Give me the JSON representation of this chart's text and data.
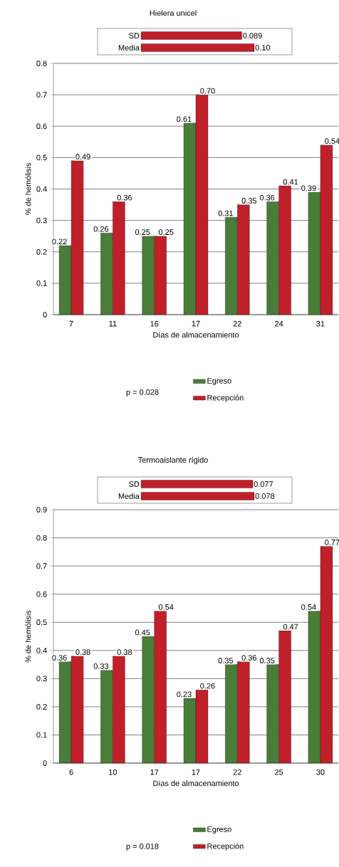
{
  "chart_data": [
    {
      "type": "bar",
      "xlabel": "Días de almacenamiento",
      "ylabel": "% de hemólisis",
      "categories": [
        "7",
        "11",
        "16",
        "17",
        "22",
        "24",
        "31"
      ],
      "series": [
        {
          "name": "Egreso",
          "color": "#4a7c3a",
          "values": [
            0.22,
            0.26,
            0.25,
            0.61,
            0.31,
            0.36,
            0.39
          ],
          "value_labels": [
            "0.22",
            "0.26",
            "0.25",
            "0.61",
            "0.31",
            "0.36",
            "0.39"
          ]
        },
        {
          "name": "Recepción",
          "color": "#c0202a",
          "values": [
            0.49,
            0.36,
            0.25,
            0.7,
            0.35,
            0.41,
            0.54
          ],
          "value_labels": [
            "0.49",
            "0.36",
            "0.25",
            "0.70",
            "0.35",
            "0.41",
            "0.54"
          ]
        }
      ],
      "ylim": [
        0,
        0.8
      ],
      "yticks": [
        0,
        0.1,
        0.2,
        0.3,
        0.4,
        0.5,
        0.6,
        0.7,
        0.8
      ],
      "grid": "y",
      "legend": "bottom",
      "annotations": [
        "p = 0.028"
      ]
    },
    {
      "type": "bar",
      "title": "Hielera unicel",
      "orientation": "horizontal",
      "categories": [
        "SD",
        "Media"
      ],
      "values": [
        0.089,
        0.1
      ],
      "color": "#c0202a",
      "value_labels": [
        "0.089",
        "0.10"
      ]
    },
    {
      "type": "bar",
      "xlabel": "Días de almacenamiento",
      "ylabel": "% de hemólisis",
      "categories": [
        "6",
        "10",
        "17",
        "17",
        "22",
        "25",
        "30"
      ],
      "series": [
        {
          "name": "Egreso",
          "color": "#4a7c3a",
          "values": [
            0.36,
            0.33,
            0.45,
            0.23,
            0.35,
            0.35,
            0.54
          ],
          "value_labels": [
            "0.36",
            "0.33",
            "0.45",
            "0.23",
            "0.35",
            "0.35",
            "0.54"
          ]
        },
        {
          "name": "Recepción",
          "color": "#c0202a",
          "values": [
            0.38,
            0.38,
            0.54,
            0.26,
            0.36,
            0.47,
            0.77
          ],
          "value_labels": [
            "0.38",
            "0.38",
            "0.54",
            "0.26",
            "0.36",
            "0.47",
            "0.77"
          ]
        }
      ],
      "ylim": [
        0,
        0.9
      ],
      "yticks": [
        0,
        0.1,
        0.2,
        0.3,
        0.4,
        0.5,
        0.6,
        0.7,
        0.8,
        0.9
      ],
      "grid": "y",
      "legend": "bottom",
      "annotations": [
        "p = 0.018"
      ]
    },
    {
      "type": "bar",
      "title": "Termoaislante rígido",
      "orientation": "horizontal",
      "categories": [
        "SD",
        "Media"
      ],
      "values": [
        0.077,
        0.078
      ],
      "color": "#c0202a",
      "value_labels": [
        "0.077",
        "0.078"
      ]
    }
  ]
}
